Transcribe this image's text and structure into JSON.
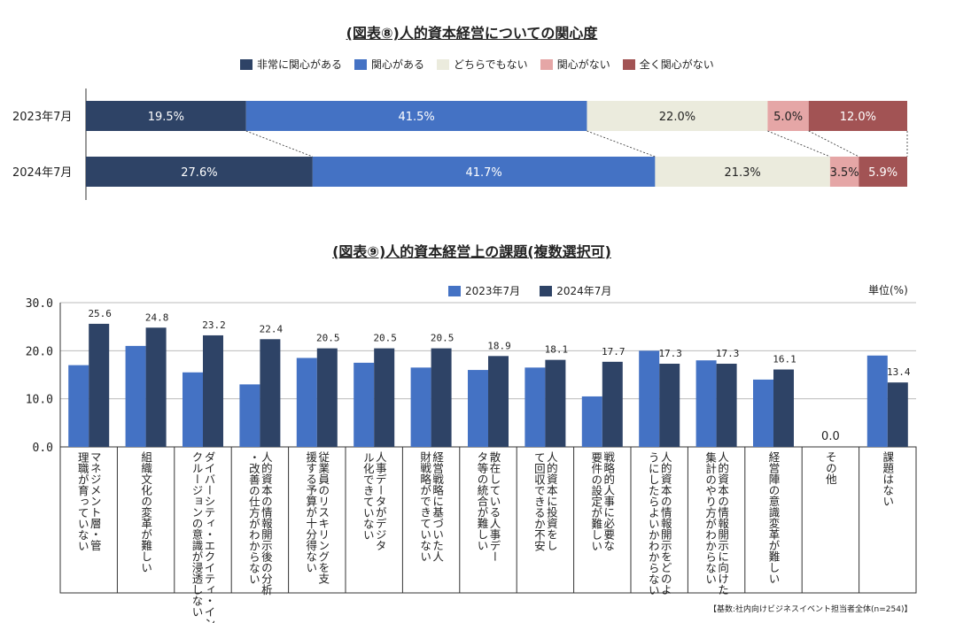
{
  "chart_data": [
    {
      "type": "bar",
      "orientation": "horizontal-stacked-100",
      "title": "(図表⑧)人的資本経営についての関心度",
      "categories": [
        "2023年7月",
        "2024年7月"
      ],
      "series": [
        {
          "name": "非常に関心がある",
          "color": "#2e4366",
          "values": [
            19.5,
            27.6
          ]
        },
        {
          "name": "関心がある",
          "color": "#4472c4",
          "values": [
            41.5,
            41.7
          ]
        },
        {
          "name": "どちらでもない",
          "color": "#ebebdd",
          "values": [
            22.0,
            21.3
          ]
        },
        {
          "name": "関心がない",
          "color": "#e5a6a6",
          "values": [
            5.0,
            3.5
          ]
        },
        {
          "name": "全く関心がない",
          "color": "#a25354",
          "values": [
            12.0,
            5.9
          ]
        }
      ],
      "value_labels": [
        [
          "19.5%",
          "41.5%",
          "22.0%",
          "5.0%",
          "12.0%"
        ],
        [
          "27.6%",
          "41.7%",
          "21.3%",
          "3.5%",
          "5.9%"
        ]
      ],
      "legend": "top-center"
    },
    {
      "type": "bar",
      "title": "(図表⑨)人的資本経営上の課題(複数選択可)",
      "unit_label": "単位(%)",
      "ylim": [
        0,
        30
      ],
      "yticks": [
        "0.0",
        "10.0",
        "20.0",
        "30.0"
      ],
      "categories": [
        "マネジメント層・管理職が育っていない",
        "組織文化の変革が難しい",
        "ダイバーシティ・エクイティ・インクルージョンの意識が浸透しない",
        "人的資本の情報開示後の分析・改善の仕方がわからない",
        "従業員のリスキリングを支援する予算が十分得ない",
        "人事データがデジタル化できていない",
        "経営戦略に基づいた人財戦略ができていない",
        "散在している人事データ等の統合が難しい",
        "人的資本に投資をして回収できるか不安",
        "戦略的人事に必要な要件の設定が難しい",
        "人的資本の情報開示をどのようにしたらよいかわからない",
        "人的資本の情報開示に向けた集計のやり方がわからない",
        "経営陣の意識変革が難しい",
        "その他",
        "課題はない"
      ],
      "series": [
        {
          "name": "2023年7月",
          "color": "#4472c4",
          "values": [
            17.0,
            21.0,
            15.5,
            13.0,
            18.5,
            17.5,
            16.5,
            16.0,
            16.5,
            10.5,
            20.0,
            18.0,
            14.0,
            0.0,
            19.0
          ]
        },
        {
          "name": "2024年7月",
          "color": "#2e4366",
          "values": [
            25.6,
            24.8,
            23.2,
            22.4,
            20.5,
            20.5,
            20.5,
            18.9,
            18.1,
            17.7,
            17.3,
            17.3,
            16.1,
            0.0,
            13.4
          ]
        }
      ],
      "value_labels": [
        "25.6",
        "24.8",
        "23.2",
        "22.4",
        "20.5",
        "20.5",
        "20.5",
        "18.9",
        "18.1",
        "17.7",
        "17.3",
        "17.3",
        "16.1",
        "0.0",
        "13.4"
      ],
      "legend": "top-center",
      "footnote": "【基数:社内向けビジネスイベント担当者全体(n=254)】"
    }
  ]
}
